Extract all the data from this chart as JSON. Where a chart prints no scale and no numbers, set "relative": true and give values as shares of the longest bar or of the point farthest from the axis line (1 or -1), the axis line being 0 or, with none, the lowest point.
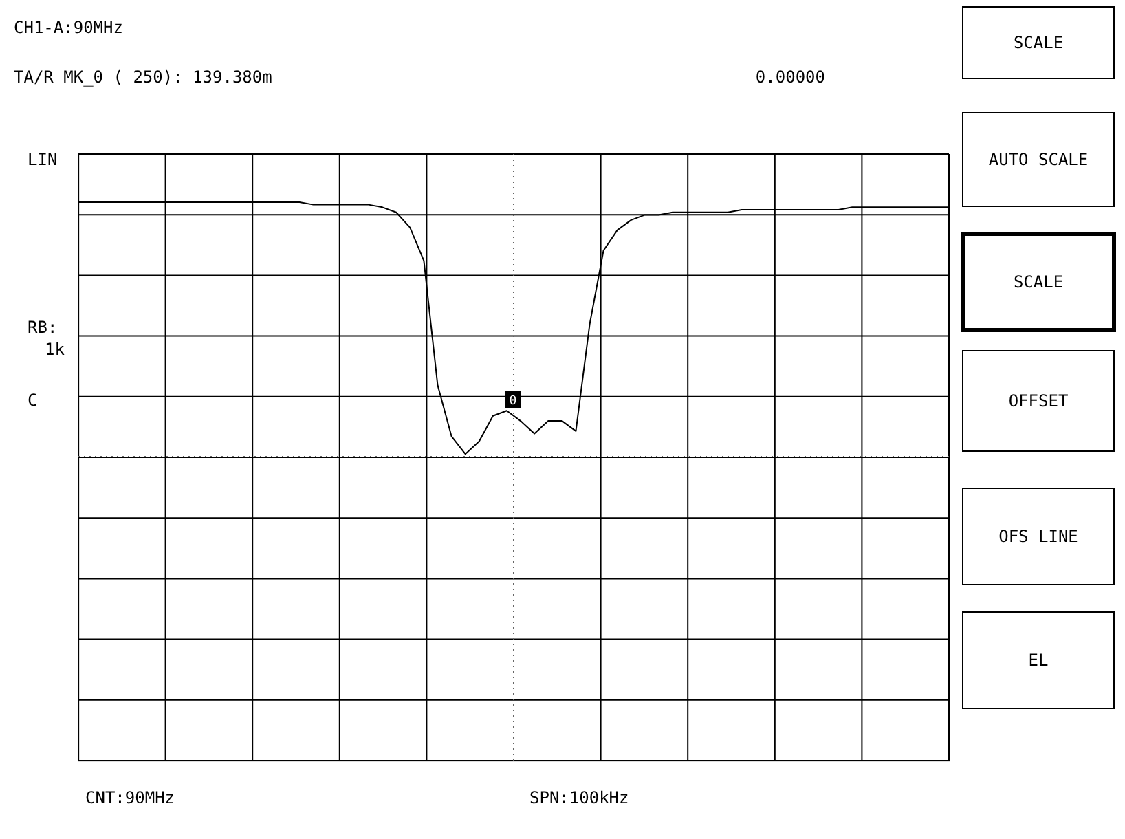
{
  "chart_data": {
    "type": "line",
    "title": "CH1-A:90MHz",
    "subtitle": "TA/R  MK_0 (  250):  139.380m",
    "relative": true,
    "categories": [
      null,
      null,
      null,
      null,
      null,
      null,
      null,
      null,
      null,
      null,
      null,
      null,
      null,
      null,
      null,
      null,
      null,
      null,
      null,
      null,
      null,
      null,
      null,
      null,
      null,
      null,
      null,
      null,
      null,
      null,
      null,
      null,
      null,
      null,
      null,
      null,
      null,
      null,
      null,
      null,
      null,
      null,
      null,
      null,
      null,
      null,
      null,
      null,
      null,
      null,
      null,
      null,
      null,
      null,
      null,
      null,
      null,
      null,
      null,
      null,
      null,
      null,
      null,
      null
    ],
    "series": [
      {
        "color": "#000000",
        "values": [
          1.0,
          1.0,
          1.0,
          1.0,
          1.0,
          1.0,
          1.0,
          1.0,
          1.0,
          1.0,
          1.0,
          1.0,
          1.0,
          1.0,
          1.0,
          1.0,
          1.0,
          0.99,
          0.99,
          0.99,
          0.99,
          0.99,
          0.98,
          0.96,
          0.9,
          0.77,
          0.28,
          0.08,
          0.01,
          0.06,
          0.16,
          0.18,
          0.14,
          0.09,
          0.14,
          0.14,
          0.1,
          0.52,
          0.81,
          0.89,
          0.93,
          0.95,
          0.95,
          0.96,
          0.96,
          0.96,
          0.96,
          0.96,
          0.97,
          0.97,
          0.97,
          0.97,
          0.97,
          0.97,
          0.97,
          0.97,
          0.98,
          0.98,
          0.98,
          0.98,
          0.98,
          0.98,
          0.98,
          0.98
        ]
      }
    ],
    "grid": true,
    "marker": "none",
    "line_style": "solid",
    "annotations": [
      "0.00000",
      "LIN",
      "RB:",
      "1k",
      "C",
      "CNT:90MHz",
      "SPN:100kHz",
      "SCALE",
      "AUTO SCALE",
      "SCALE",
      "OFFSET",
      "OFS LINE",
      "EL",
      "0"
    ]
  }
}
